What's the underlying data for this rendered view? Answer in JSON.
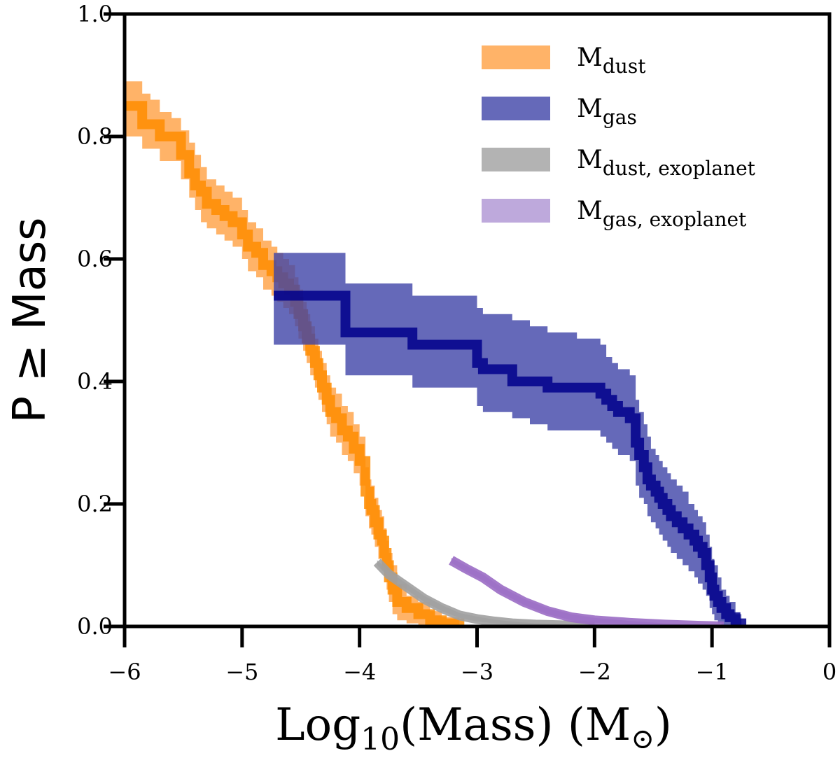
{
  "chart_data": {
    "type": "line",
    "xlabel": {
      "main": "Log",
      "sub": "10",
      "rest": "(Mass) (M",
      "sun_symbol": "⊙",
      "close": ")"
    },
    "ylabel": "P ≥ Mass",
    "xlim": [
      -6,
      0
    ],
    "ylim": [
      0,
      1
    ],
    "xticks": [
      -6,
      -5,
      -4,
      -3,
      -2,
      -1,
      0
    ],
    "xtick_labels": [
      "−6",
      "−5",
      "−4",
      "−3",
      "−2",
      "−1",
      "0"
    ],
    "yticks": [
      0.0,
      0.2,
      0.4,
      0.6,
      0.8,
      1.0
    ],
    "ytick_labels": [
      "0.0",
      "0.2",
      "0.4",
      "0.6",
      "0.8",
      "1.0"
    ],
    "grid": false,
    "legend_position": "top-right",
    "series": [
      {
        "name": "M_dust",
        "legend": {
          "main": "M",
          "sub": "dust"
        },
        "color": "#ff8c00",
        "band_color": "#ffa64d",
        "band_opacity": 0.85,
        "line_opacity": 0.85,
        "step": true,
        "x": [
          -6.0,
          -5.92,
          -5.85,
          -5.78,
          -5.7,
          -5.6,
          -5.52,
          -5.45,
          -5.4,
          -5.35,
          -5.3,
          -5.22,
          -5.15,
          -5.08,
          -5.0,
          -4.95,
          -4.88,
          -4.82,
          -4.75,
          -4.7,
          -4.65,
          -4.6,
          -4.55,
          -4.52,
          -4.48,
          -4.45,
          -4.42,
          -4.38,
          -4.35,
          -4.32,
          -4.28,
          -4.25,
          -4.2,
          -4.15,
          -4.1,
          -4.05,
          -4.0,
          -3.95,
          -3.92,
          -3.9,
          -3.87,
          -3.84,
          -3.81,
          -3.79,
          -3.77,
          -3.75,
          -3.72,
          -3.68,
          -3.6,
          -3.5,
          -3.4,
          -3.3,
          -3.15
        ],
        "y": [
          0.85,
          0.85,
          0.82,
          0.82,
          0.8,
          0.8,
          0.77,
          0.74,
          0.72,
          0.71,
          0.69,
          0.68,
          0.67,
          0.66,
          0.64,
          0.62,
          0.61,
          0.59,
          0.58,
          0.57,
          0.56,
          0.55,
          0.53,
          0.51,
          0.49,
          0.47,
          0.45,
          0.43,
          0.41,
          0.39,
          0.37,
          0.35,
          0.34,
          0.32,
          0.31,
          0.29,
          0.27,
          0.22,
          0.2,
          0.19,
          0.17,
          0.15,
          0.14,
          0.12,
          0.1,
          0.08,
          0.06,
          0.04,
          0.03,
          0.02,
          0.01,
          0.005,
          0.0
        ],
        "upper": [
          0.89,
          0.89,
          0.87,
          0.86,
          0.84,
          0.83,
          0.81,
          0.79,
          0.77,
          0.75,
          0.73,
          0.72,
          0.71,
          0.7,
          0.68,
          0.66,
          0.65,
          0.63,
          0.62,
          0.61,
          0.6,
          0.59,
          0.57,
          0.55,
          0.53,
          0.51,
          0.49,
          0.47,
          0.45,
          0.43,
          0.41,
          0.39,
          0.38,
          0.36,
          0.35,
          0.33,
          0.31,
          0.26,
          0.24,
          0.23,
          0.21,
          0.19,
          0.18,
          0.16,
          0.14,
          0.12,
          0.1,
          0.07,
          0.05,
          0.04,
          0.025,
          0.015,
          0.005
        ],
        "lower": [
          0.8,
          0.8,
          0.78,
          0.78,
          0.76,
          0.76,
          0.73,
          0.7,
          0.68,
          0.66,
          0.65,
          0.64,
          0.63,
          0.62,
          0.6,
          0.58,
          0.57,
          0.55,
          0.54,
          0.53,
          0.52,
          0.51,
          0.49,
          0.47,
          0.45,
          0.43,
          0.41,
          0.39,
          0.37,
          0.35,
          0.33,
          0.31,
          0.3,
          0.28,
          0.27,
          0.25,
          0.23,
          0.18,
          0.16,
          0.15,
          0.13,
          0.11,
          0.1,
          0.08,
          0.06,
          0.04,
          0.02,
          0.01,
          0.005,
          0.0,
          0.0,
          0.0,
          0.0
        ]
      },
      {
        "name": "M_gas",
        "legend": {
          "main": "M",
          "sub": "gas"
        },
        "color": "#00008b",
        "band_color": "#3f44a8",
        "band_opacity": 0.8,
        "line_opacity": 0.85,
        "step": true,
        "x": [
          -4.73,
          -4.55,
          -4.12,
          -4.0,
          -3.85,
          -3.55,
          -3.0,
          -2.95,
          -2.7,
          -2.55,
          -2.4,
          -2.15,
          -1.95,
          -1.9,
          -1.85,
          -1.8,
          -1.7,
          -1.65,
          -1.62,
          -1.58,
          -1.55,
          -1.52,
          -1.48,
          -1.45,
          -1.42,
          -1.38,
          -1.35,
          -1.3,
          -1.25,
          -1.2,
          -1.15,
          -1.12,
          -1.08,
          -1.05,
          -1.02,
          -1.0,
          -0.98,
          -0.95,
          -0.92,
          -0.88,
          -0.85,
          -0.8,
          -0.75
        ],
        "y": [
          0.54,
          0.54,
          0.48,
          0.48,
          0.48,
          0.46,
          0.43,
          0.42,
          0.4,
          0.4,
          0.39,
          0.39,
          0.38,
          0.37,
          0.36,
          0.35,
          0.34,
          0.3,
          0.28,
          0.26,
          0.24,
          0.23,
          0.22,
          0.21,
          0.2,
          0.19,
          0.18,
          0.17,
          0.16,
          0.15,
          0.14,
          0.13,
          0.12,
          0.1,
          0.08,
          0.06,
          0.05,
          0.04,
          0.03,
          0.02,
          0.015,
          0.005,
          0.0
        ],
        "upper": [
          0.61,
          0.61,
          0.56,
          0.56,
          0.56,
          0.54,
          0.52,
          0.51,
          0.5,
          0.49,
          0.48,
          0.47,
          0.46,
          0.44,
          0.43,
          0.42,
          0.41,
          0.37,
          0.35,
          0.33,
          0.31,
          0.29,
          0.28,
          0.27,
          0.26,
          0.25,
          0.24,
          0.23,
          0.22,
          0.2,
          0.19,
          0.18,
          0.17,
          0.15,
          0.13,
          0.11,
          0.1,
          0.08,
          0.06,
          0.05,
          0.04,
          0.02,
          0.01
        ],
        "lower": [
          0.46,
          0.46,
          0.41,
          0.41,
          0.41,
          0.39,
          0.36,
          0.35,
          0.34,
          0.33,
          0.32,
          0.32,
          0.31,
          0.3,
          0.29,
          0.28,
          0.27,
          0.23,
          0.21,
          0.2,
          0.18,
          0.17,
          0.16,
          0.15,
          0.14,
          0.13,
          0.12,
          0.11,
          0.1,
          0.09,
          0.08,
          0.07,
          0.06,
          0.05,
          0.03,
          0.02,
          0.01,
          0.005,
          0.0,
          0.0,
          0.0,
          0.0,
          0.0
        ]
      },
      {
        "name": "M_dust, exoplanet",
        "legend": {
          "main": "M",
          "sub": "dust, exoplanet"
        },
        "color": "#a0a0a0",
        "band_color": "#a0a0a0",
        "band_opacity": 0.8,
        "line_opacity": 0.9,
        "step": false,
        "x": [
          -3.85,
          -3.75,
          -3.6,
          -3.45,
          -3.3,
          -3.15,
          -3.0,
          -2.85,
          -2.7,
          -2.5,
          -2.3,
          -2.1,
          -2.0
        ],
        "y": [
          0.105,
          0.085,
          0.065,
          0.045,
          0.03,
          0.018,
          0.012,
          0.008,
          0.005,
          0.003,
          0.002,
          0.001,
          0.0
        ],
        "upper": [
          0.108,
          0.09,
          0.07,
          0.05,
          0.035,
          0.022,
          0.016,
          0.011,
          0.008,
          0.005,
          0.004,
          0.002,
          0.001
        ],
        "lower": [
          0.1,
          0.08,
          0.06,
          0.04,
          0.025,
          0.014,
          0.008,
          0.005,
          0.002,
          0.001,
          0.0,
          0.0,
          0.0
        ]
      },
      {
        "name": "M_gas, exoplanet",
        "legend": {
          "main": "M",
          "sub": "gas, exoplanet"
        },
        "color": "#9a6cc4",
        "band_color": "#b39ad6",
        "band_opacity": 0.85,
        "line_opacity": 0.9,
        "step": false,
        "x": [
          -3.22,
          -3.1,
          -2.95,
          -2.8,
          -2.6,
          -2.4,
          -2.2,
          -2.0,
          -1.7,
          -1.4,
          -1.1,
          -0.9
        ],
        "y": [
          0.108,
          0.095,
          0.08,
          0.06,
          0.04,
          0.025,
          0.015,
          0.01,
          0.006,
          0.003,
          0.001,
          0.0
        ],
        "upper": [
          0.112,
          0.1,
          0.085,
          0.065,
          0.045,
          0.03,
          0.02,
          0.014,
          0.009,
          0.005,
          0.003,
          0.001
        ],
        "lower": [
          0.104,
          0.09,
          0.075,
          0.055,
          0.035,
          0.02,
          0.01,
          0.006,
          0.003,
          0.001,
          0.0,
          0.0
        ]
      }
    ]
  }
}
